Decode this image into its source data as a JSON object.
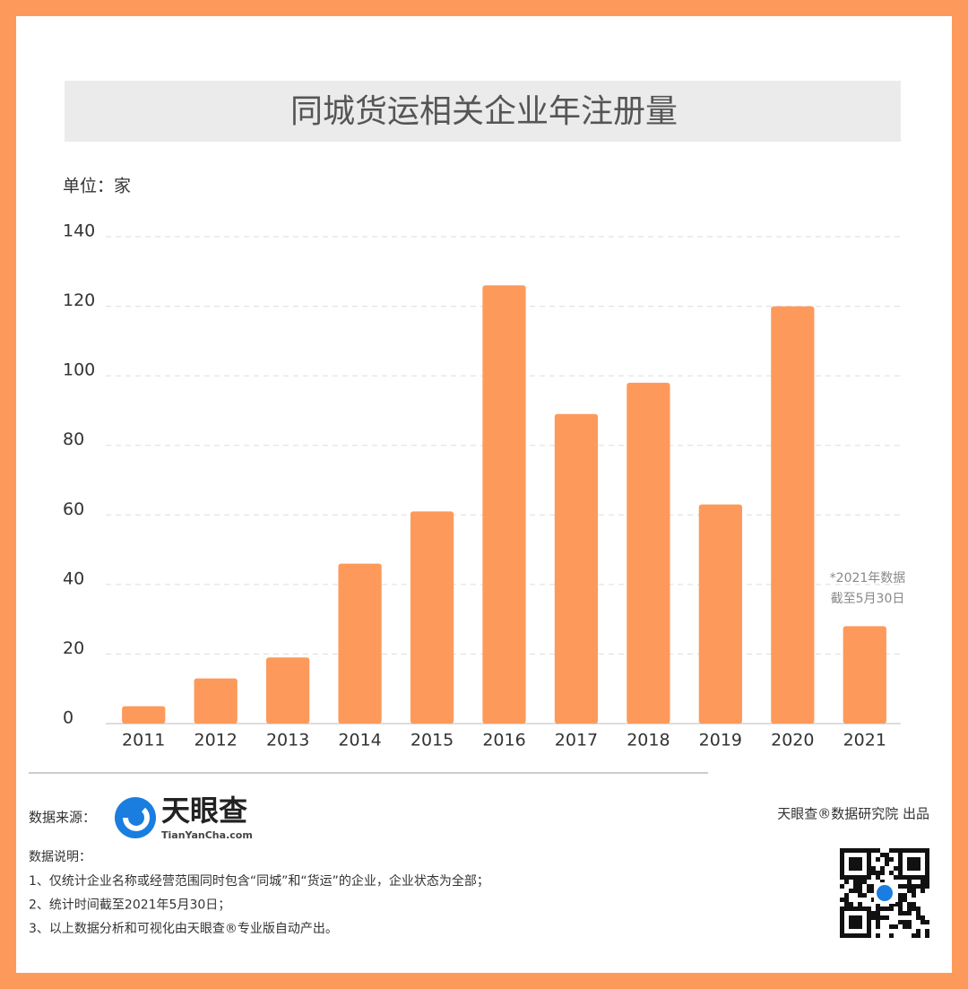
{
  "chart_data": {
    "type": "bar",
    "title": "同城货运相关企业年注册量",
    "unit_label": "单位：家",
    "categories": [
      "2011",
      "2012",
      "2013",
      "2014",
      "2015",
      "2016",
      "2017",
      "2018",
      "2019",
      "2020",
      "2021"
    ],
    "values": [
      5,
      13,
      19,
      46,
      61,
      126,
      89,
      98,
      63,
      120,
      28
    ],
    "color": "#fd9a5b",
    "ylim": [
      0,
      140
    ],
    "yticks": [
      0,
      20,
      40,
      60,
      80,
      100,
      120,
      140
    ],
    "grid": true,
    "annotation": [
      "*2021年数据",
      "截至5月30日"
    ]
  },
  "footer": {
    "source_label": "数据来源：",
    "logo_name": "天眼查",
    "logo_url": "TianYanCha.com",
    "producer": "天眼查®数据研究院 出品",
    "notes_title": "数据说明：",
    "notes": [
      "1、仅统计企业名称或经营范围同时包含“同城”和“货运”的企业，企业状态为全部；",
      "2、统计时间截至2021年5月30日；",
      "3、以上数据分析和可视化由天眼查®专业版自动产出。"
    ]
  }
}
